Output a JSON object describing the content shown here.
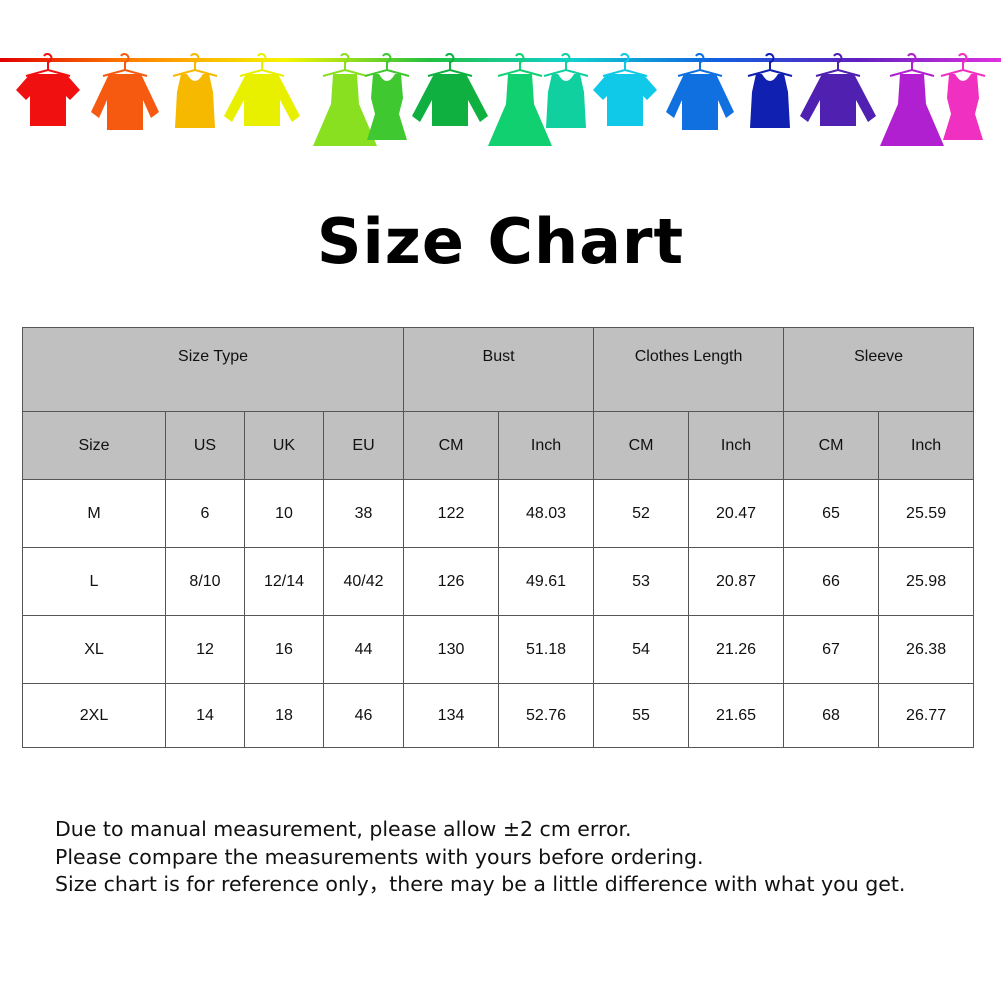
{
  "banner": {
    "line_colors": [
      "#e00000",
      "#ff8a00",
      "#f5f500",
      "#22c040",
      "#10d0d0",
      "#1060e0",
      "#6020c0",
      "#e030e0"
    ],
    "items": [
      {
        "icon": "tshirt-icon",
        "color": "#f01010"
      },
      {
        "icon": "shirt-icon",
        "color": "#f55a10"
      },
      {
        "icon": "tank-top-icon",
        "color": "#f7b800"
      },
      {
        "icon": "sweater-icon",
        "color": "#e8f000"
      },
      {
        "icon": "dress-icon",
        "color": "#88e020"
      },
      {
        "icon": "tank-dress-icon",
        "color": "#40c830"
      },
      {
        "icon": "sweater-icon",
        "color": "#10b040"
      },
      {
        "icon": "dress-icon",
        "color": "#10d070"
      },
      {
        "icon": "tank-top-icon",
        "color": "#10d0a0"
      },
      {
        "icon": "tshirt-icon",
        "color": "#10c8e8"
      },
      {
        "icon": "shirt-icon",
        "color": "#1070e0"
      },
      {
        "icon": "tank-top-icon",
        "color": "#1020b0"
      },
      {
        "icon": "sweater-icon",
        "color": "#5020b0"
      },
      {
        "icon": "dress-icon",
        "color": "#b020d0"
      },
      {
        "icon": "tank-dress-icon",
        "color": "#f030c0"
      }
    ]
  },
  "title": "Size Chart",
  "table": {
    "header_color": "#c0c0c0",
    "group_headers": [
      "Size Type",
      "Bust",
      "Clothes Length",
      "Sleeve"
    ],
    "sub_headers": [
      "Size",
      "US",
      "UK",
      "EU",
      "CM",
      "Inch",
      "CM",
      "Inch",
      "CM",
      "Inch"
    ],
    "rows": [
      [
        "M",
        "6",
        "10",
        "38",
        "122",
        "48.03",
        "52",
        "20.47",
        "65",
        "25.59"
      ],
      [
        "L",
        "8/10",
        "12/14",
        "40/42",
        "126",
        "49.61",
        "53",
        "20.87",
        "66",
        "25.98"
      ],
      [
        "XL",
        "12",
        "16",
        "44",
        "130",
        "51.18",
        "54",
        "21.26",
        "67",
        "26.38"
      ],
      [
        "2XL",
        "14",
        "18",
        "46",
        "134",
        "52.76",
        "55",
        "21.65",
        "68",
        "26.77"
      ]
    ]
  },
  "notes": [
    "Due to manual measurement, please allow ±2 cm error.",
    "Please compare the measurements with yours before ordering.",
    "Size chart is for reference only，there may be a little difference with what you get."
  ]
}
